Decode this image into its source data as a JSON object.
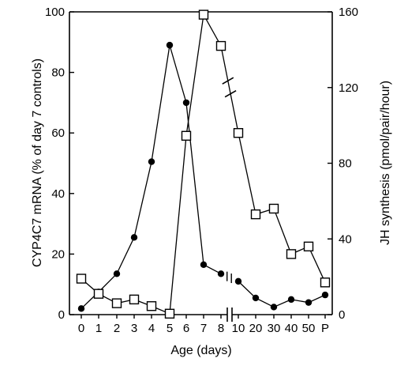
{
  "chart_data": {
    "type": "line",
    "xlabel": "Age (days)",
    "ylabel_left": "CYP4C7 mRNA (% of day 7 controls)",
    "ylabel_right": "JH synthesis (pmol/pair/hour)",
    "x_categories": [
      "0",
      "1",
      "2",
      "3",
      "4",
      "5",
      "6",
      "7",
      "8",
      "10",
      "20",
      "30",
      "40",
      "50",
      "P"
    ],
    "axis_break_between": [
      "8",
      "10"
    ],
    "ylim_left": [
      0,
      100
    ],
    "ylim_right": [
      0,
      160
    ],
    "yticks_left": [
      "0",
      "20",
      "40",
      "60",
      "80",
      "100"
    ],
    "yticks_right": [
      "0",
      "40",
      "80",
      "120",
      "160"
    ],
    "series": [
      {
        "marker": "filled-circle",
        "axis": "left",
        "color": "#000000",
        "values": [
          2,
          7.5,
          13.5,
          25.5,
          50.5,
          89,
          70,
          16.5,
          13.5,
          11,
          5.5,
          2.5,
          5,
          4,
          6.5
        ]
      },
      {
        "marker": "open-square",
        "axis": "right",
        "color": "#000000",
        "values": [
          19,
          11,
          6,
          8,
          4.5,
          0.5,
          94.5,
          158.5,
          142,
          96,
          53,
          56,
          32,
          36,
          17
        ]
      }
    ]
  }
}
